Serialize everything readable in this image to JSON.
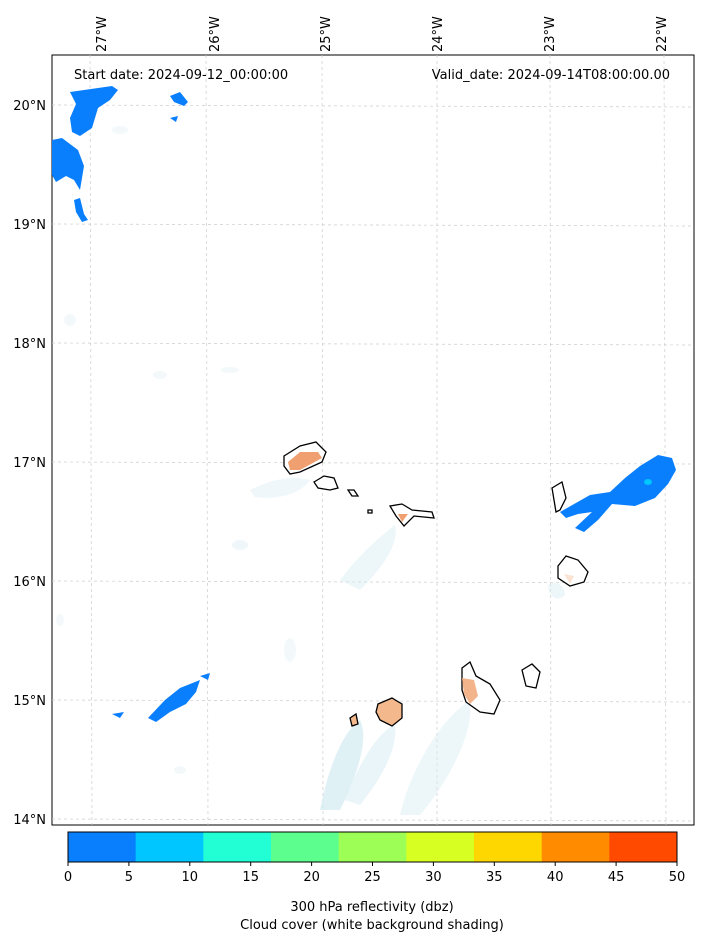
{
  "map": {
    "start_label": "Start date: 2024-09-12_00:00:00",
    "valid_label": "Valid_date: 2024-09-14T08:00:00.00",
    "lon_labels": [
      "27°W",
      "26°W",
      "25°W",
      "24°W",
      "23°W",
      "22°W"
    ],
    "lat_labels": [
      "20°N",
      "19°N",
      "18°N",
      "17°N",
      "16°N",
      "15°N",
      "14°N"
    ],
    "gridlines": true
  },
  "colorbar": {
    "ticks": [
      "0",
      "5",
      "10",
      "15",
      "20",
      "25",
      "30",
      "35",
      "40",
      "45",
      "50"
    ],
    "colors": [
      "#0a7ffd",
      "#00c6ff",
      "#22ffd5",
      "#5cff8e",
      "#9dff55",
      "#d8ff22",
      "#ffd700",
      "#ff8c00",
      "#ff4a00"
    ],
    "label_line1": "300 hPa reflectivity (dbz)",
    "label_line2": "Cloud cover (white background shading)"
  },
  "colors": {
    "reflectivity_blue": "#0a7ffd",
    "island_fill": "#f0a070",
    "cloud_shade": "#d6ecf3"
  }
}
